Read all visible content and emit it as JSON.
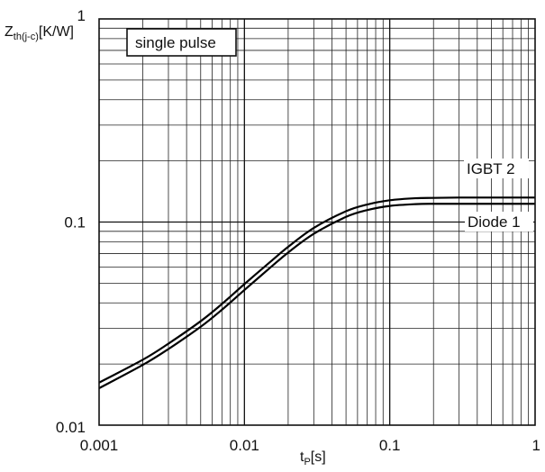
{
  "chart_data": {
    "type": "line",
    "xscale": "log",
    "yscale": "log",
    "xlim": [
      0.001,
      1
    ],
    "ylim": [
      0.01,
      1
    ],
    "grid": true,
    "ylabel_main": "Z",
    "ylabel_sub": "th(j-c)",
    "ylabel_unit": "[K/W]",
    "xlabel_main": "t",
    "xlabel_sub": "P",
    "xlabel_unit": "[s]",
    "x_ticks": [
      {
        "value": 0.001,
        "label": "0.001"
      },
      {
        "value": 0.01,
        "label": "0.01"
      },
      {
        "value": 0.1,
        "label": "0.1"
      },
      {
        "value": 1,
        "label": "1"
      }
    ],
    "y_ticks": [
      {
        "value": 0.01,
        "label": "0.01"
      },
      {
        "value": 0.1,
        "label": "0.1"
      },
      {
        "value": 1,
        "label": "1"
      }
    ],
    "annotation": "single pulse",
    "series": [
      {
        "name": "IGBT 2",
        "x": [
          0.001,
          0.002,
          0.003,
          0.005,
          0.007,
          0.01,
          0.015,
          0.02,
          0.03,
          0.05,
          0.07,
          0.1,
          0.15,
          0.2,
          0.3,
          0.5,
          1
        ],
        "y": [
          0.0162,
          0.021,
          0.0252,
          0.0325,
          0.0395,
          0.0495,
          0.0635,
          0.0755,
          0.0935,
          0.113,
          0.122,
          0.128,
          0.131,
          0.1315,
          0.132,
          0.132,
          0.132
        ]
      },
      {
        "name": "Diode 1",
        "x": [
          0.001,
          0.002,
          0.003,
          0.005,
          0.007,
          0.01,
          0.015,
          0.02,
          0.03,
          0.05,
          0.07,
          0.1,
          0.15,
          0.2,
          0.3,
          0.5,
          1
        ],
        "y": [
          0.0152,
          0.0198,
          0.0237,
          0.0305,
          0.037,
          0.0463,
          0.0595,
          0.0708,
          0.0875,
          0.106,
          0.1145,
          0.12,
          0.1225,
          0.123,
          0.123,
          0.123,
          0.123
        ]
      }
    ]
  }
}
